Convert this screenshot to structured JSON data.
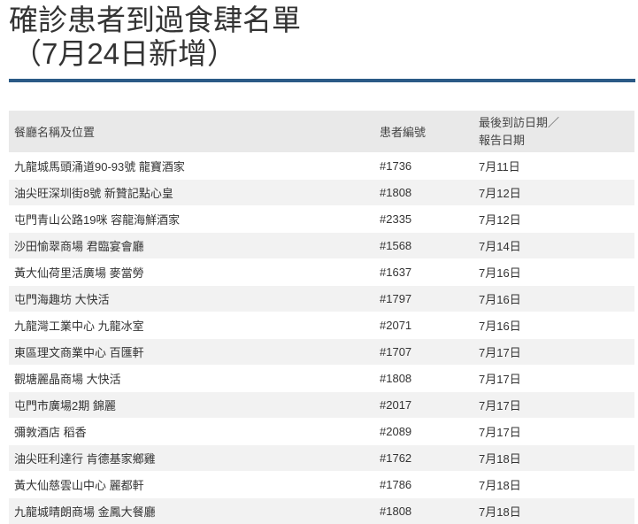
{
  "header": {
    "title_lines": [
      "確診患者到過食肆名單",
      "（7月24日新增）"
    ]
  },
  "table": {
    "columns": [
      "餐廳名稱及位置",
      "患者編號",
      "最後到訪日期／報告日期"
    ],
    "rows": [
      [
        "九龍城馬頭涌道90-93號 龍寶酒家",
        "#1736",
        "7月11日"
      ],
      [
        "油尖旺深圳街8號 新贊記點心皇",
        "#1808",
        "7月12日"
      ],
      [
        "屯門青山公路19咪 容龍海鮮酒家",
        "#2335",
        "7月12日"
      ],
      [
        "沙田愉翠商場 君臨宴會廳",
        "#1568",
        "7月14日"
      ],
      [
        "黃大仙荷里活廣場 麥當勞",
        "#1637",
        "7月16日"
      ],
      [
        "屯門海趣坊 大快活",
        "#1797",
        "7月16日"
      ],
      [
        "九龍灣工業中心 九龍冰室",
        "#2071",
        "7月16日"
      ],
      [
        "東區理文商業中心 百匯軒",
        "#1707",
        "7月17日"
      ],
      [
        "觀塘麗晶商場 大快活",
        "#1808",
        "7月17日"
      ],
      [
        "屯門市廣場2期 錦麗",
        "#2017",
        "7月17日"
      ],
      [
        "彌敦酒店 稻香",
        "#2089",
        "7月17日"
      ],
      [
        "油尖旺利達行 肯德基家鄉雞",
        "#1762",
        "7月18日"
      ],
      [
        "黃大仙慈雲山中心 麗都軒",
        "#1786",
        "7月18日"
      ],
      [
        "九龍城晴朗商場 金鳳大餐廳",
        "#1808",
        "7月18日"
      ]
    ]
  }
}
